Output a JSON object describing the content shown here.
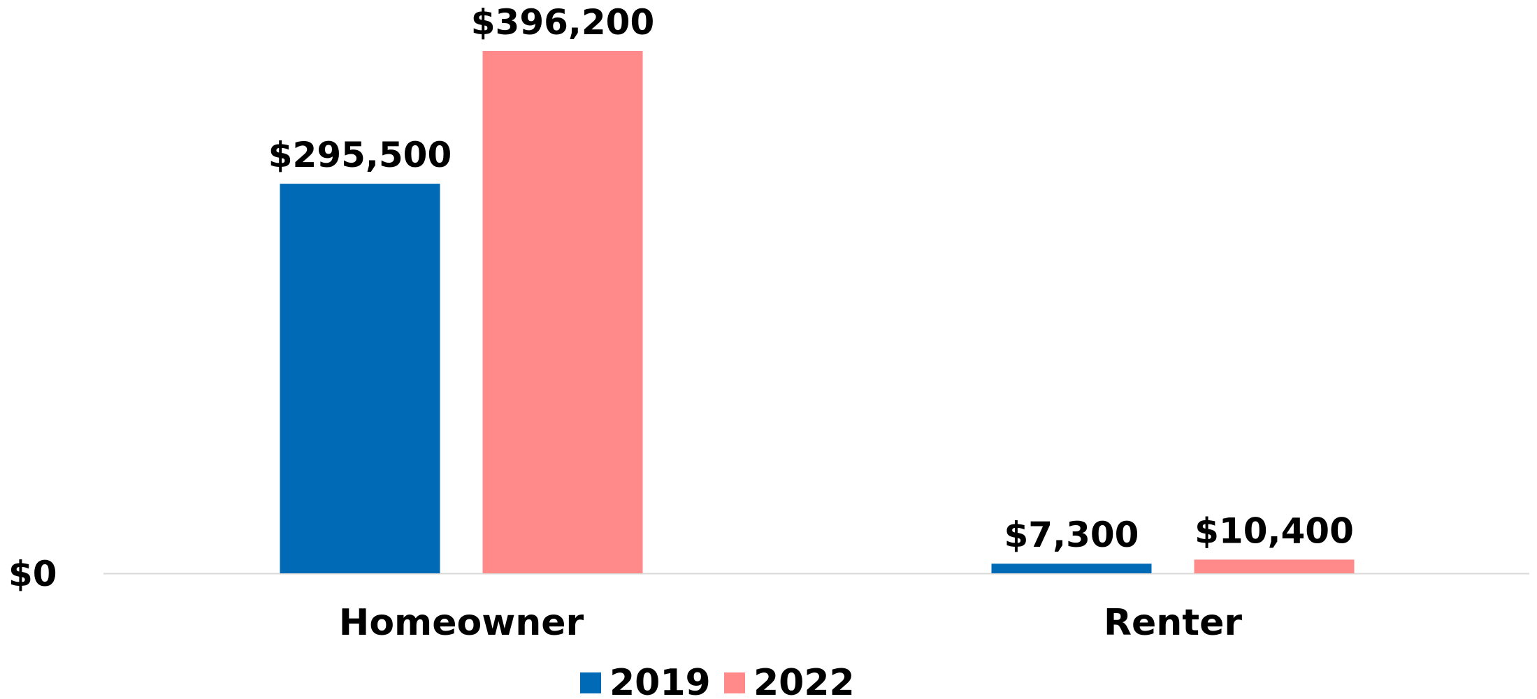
{
  "chart_data": {
    "type": "bar",
    "title": "",
    "xlabel": "",
    "ylabel": "",
    "categories": [
      "Homeowner",
      "Renter"
    ],
    "series": [
      {
        "name": "2019",
        "color": "#006AB7",
        "values": [
          295500,
          7300
        ],
        "labels": [
          "$295,500",
          "$7,300"
        ]
      },
      {
        "name": "2022",
        "color": "#FF8A89",
        "values": [
          396200,
          10400
        ],
        "labels": [
          "$396,200",
          "$10,400"
        ]
      }
    ],
    "yticks": [
      {
        "value": 0,
        "label": "$0"
      }
    ],
    "ylim": [
      0,
      396200
    ],
    "grid": false,
    "legend": "bottom-center",
    "axis_color": "#D9D9D9"
  }
}
